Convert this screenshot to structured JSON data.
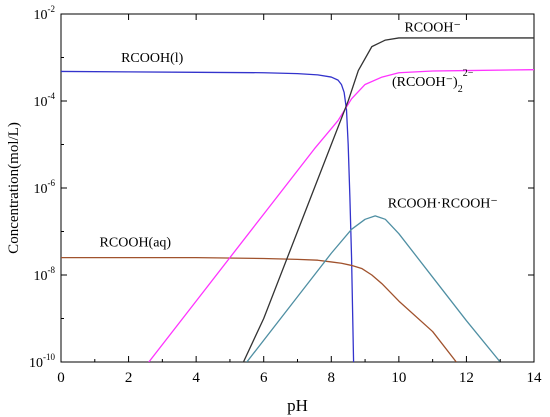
{
  "chart_data": {
    "type": "line",
    "xlabel": "pH",
    "ylabel": "Concentration(mol/L)",
    "xlim": [
      0,
      14
    ],
    "ylim": [
      1e-10,
      0.01
    ],
    "yscale": "log",
    "x_ticks": [
      0,
      2,
      4,
      6,
      8,
      10,
      12,
      14
    ],
    "y_ticks": [
      {
        "value": 0.01,
        "base": "10",
        "exp": "-2"
      },
      {
        "value": 0.0001,
        "base": "10",
        "exp": "-4"
      },
      {
        "value": 1e-06,
        "base": "10",
        "exp": "-6"
      },
      {
        "value": 1e-08,
        "base": "10",
        "exp": "-8"
      },
      {
        "value": 1e-10,
        "base": "10",
        "exp": "-10"
      }
    ],
    "grid": false,
    "series": [
      {
        "name": "RCOOH(l)",
        "color": "#3333cc",
        "points": [
          [
            0,
            -3.32
          ],
          [
            2,
            -3.33
          ],
          [
            4,
            -3.34
          ],
          [
            6,
            -3.35
          ],
          [
            7,
            -3.37
          ],
          [
            7.6,
            -3.4
          ],
          [
            8,
            -3.45
          ],
          [
            8.2,
            -3.52
          ],
          [
            8.3,
            -3.62
          ],
          [
            8.38,
            -3.8
          ],
          [
            8.45,
            -4.2
          ],
          [
            8.5,
            -5
          ],
          [
            8.55,
            -6.2
          ],
          [
            8.6,
            -7.6
          ],
          [
            8.63,
            -8.8
          ],
          [
            8.66,
            -10
          ]
        ]
      },
      {
        "name": "RCOOH(aq)",
        "color": "#a0522d",
        "points": [
          [
            0,
            -7.6
          ],
          [
            4,
            -7.6
          ],
          [
            6,
            -7.62
          ],
          [
            7,
            -7.64
          ],
          [
            7.6,
            -7.66
          ],
          [
            8,
            -7.7
          ],
          [
            8.3,
            -7.73
          ],
          [
            8.6,
            -7.78
          ],
          [
            8.9,
            -7.85
          ],
          [
            9.2,
            -8.0
          ],
          [
            9.5,
            -8.2
          ],
          [
            10,
            -8.6
          ],
          [
            11,
            -9.3
          ],
          [
            11.7,
            -10
          ]
        ]
      },
      {
        "name": "(RCOOH⁻)₂²⁻",
        "color": "#ff33ff",
        "points": [
          [
            2.6,
            -10
          ],
          [
            4,
            -8.6
          ],
          [
            6,
            -6.6
          ],
          [
            7.5,
            -5.1
          ],
          [
            8.2,
            -4.45
          ],
          [
            8.6,
            -3.95
          ],
          [
            9,
            -3.62
          ],
          [
            9.5,
            -3.45
          ],
          [
            10,
            -3.35
          ],
          [
            11,
            -3.31
          ],
          [
            12,
            -3.3
          ],
          [
            14,
            -3.28
          ]
        ]
      },
      {
        "name": "RCOOH⁻",
        "color": "#333333",
        "points": [
          [
            5.4,
            -10
          ],
          [
            6,
            -9.0
          ],
          [
            7,
            -7.0
          ],
          [
            8,
            -5.0
          ],
          [
            8.5,
            -4.0
          ],
          [
            8.8,
            -3.3
          ],
          [
            9.2,
            -2.75
          ],
          [
            9.6,
            -2.6
          ],
          [
            10,
            -2.55
          ],
          [
            14,
            -2.55
          ]
        ]
      },
      {
        "name": "RCOOH·RCOOH⁻",
        "color": "#4f8fa3",
        "points": [
          [
            5.5,
            -10
          ],
          [
            7,
            -8.5
          ],
          [
            8,
            -7.5
          ],
          [
            8.6,
            -6.95
          ],
          [
            9,
            -6.72
          ],
          [
            9.3,
            -6.64
          ],
          [
            9.6,
            -6.72
          ],
          [
            10,
            -7.05
          ],
          [
            11,
            -8.05
          ],
          [
            12,
            -9.05
          ],
          [
            13,
            -10
          ]
        ]
      }
    ],
    "annotations": [
      {
        "text": "RCOOH(l)",
        "x": 2.7,
        "yexp": -3.1
      },
      {
        "text": "RCOOH(aq)",
        "x": 2.2,
        "yexp": -7.35
      },
      {
        "text": "RCOOH·RCOOH⁻",
        "x": 11.3,
        "yexp": -6.45
      },
      {
        "text": "RCOOH⁻",
        "x": 11.0,
        "yexp": -2.4
      }
    ],
    "annotation_special": {
      "dimer_label": {
        "main": "(RCOOH⁻)",
        "sub": "2",
        "sup": "2−",
        "x": 11.0,
        "yexp": -3.65
      }
    }
  }
}
